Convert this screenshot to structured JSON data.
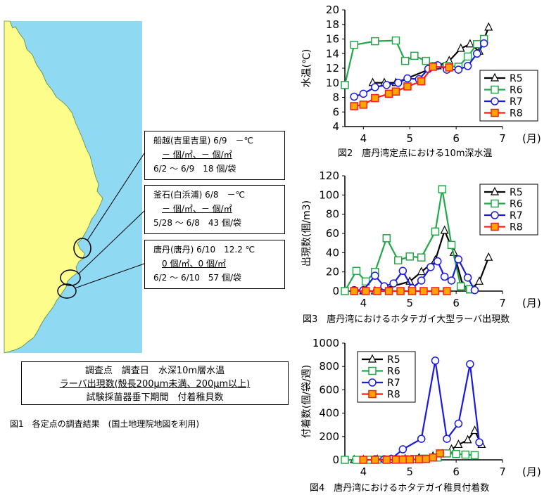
{
  "fig1": {
    "caption": "図1　各定点の調査結果　(国土地理院地図を利用)",
    "stations": [
      {
        "line1": "船越(吉里吉里) 6/9　－℃",
        "line2": "－ 個/㎡、－ 個/㎡",
        "line3": "6/2 ～ 6/9　18 個/袋"
      },
      {
        "line1": "釜石(白浜浦) 6/8　－℃",
        "line2": "－ 個/㎡、－ 個/㎡",
        "line3": "5/28 ～ 6/8　43 個/袋"
      },
      {
        "line1": "唐丹(唐丹) 6/10　12.2 ℃",
        "line2": "0 個/㎡、0 個/㎡",
        "line3": "6/2 ～ 6/10　57 個/袋"
      }
    ],
    "legend": {
      "line1": "調査点　調査日　水深10m層水温",
      "line2": "ラーバ出現数(殻長200μm未満、200μm以上)",
      "line3": "試験採苗器垂下期間　付着稚貝数"
    },
    "colors": {
      "sea": "#8fd9f2",
      "land": "#fdfd8c"
    }
  },
  "chart_data": [
    {
      "type": "line",
      "caption": "図2　唐丹湾定点における10m深水温",
      "ylabel": "水温(℃)",
      "xunit": "(月)",
      "xlim": [
        3.6,
        7.0
      ],
      "ylim": [
        4,
        20
      ],
      "xticks": [
        4,
        5,
        6,
        7
      ],
      "yticks": [
        4,
        6,
        8,
        10,
        12,
        14,
        16,
        18,
        20
      ],
      "series": [
        {
          "name": "R5",
          "color": "#000000",
          "marker": "triangle",
          "fill": "#ffffff",
          "points": [
            [
              4.2,
              10.0
            ],
            [
              4.45,
              10.0
            ],
            [
              4.7,
              10.0
            ],
            [
              5.6,
              12.3
            ],
            [
              5.85,
              13.0
            ],
            [
              6.1,
              14.7
            ],
            [
              6.3,
              15.3
            ],
            [
              6.5,
              14.3
            ],
            [
              6.7,
              17.6
            ]
          ]
        },
        {
          "name": "R6",
          "color": "#22a84a",
          "marker": "square",
          "fill": "#ffffff",
          "points": [
            [
              3.6,
              9.7
            ],
            [
              3.8,
              15.2
            ],
            [
              4.25,
              15.7
            ],
            [
              4.7,
              15.8
            ],
            [
              4.9,
              13.0
            ],
            [
              5.1,
              13.7
            ],
            [
              5.35,
              13.0
            ],
            [
              5.55,
              12.3
            ],
            [
              5.8,
              12.3
            ],
            [
              6.05,
              12.2
            ],
            [
              6.25,
              13.6
            ],
            [
              6.45,
              15.3
            ],
            [
              6.6,
              16.0
            ]
          ]
        },
        {
          "name": "R7",
          "color": "#1a1add",
          "marker": "circle",
          "fill": "#ffffff",
          "points": [
            [
              3.8,
              8.1
            ],
            [
              4.0,
              8.5
            ],
            [
              4.25,
              9.4
            ],
            [
              4.5,
              9.7
            ],
            [
              4.75,
              10.0
            ],
            [
              4.95,
              10.6
            ],
            [
              5.2,
              10.5
            ],
            [
              5.4,
              11.9
            ],
            [
              5.6,
              12.4
            ],
            [
              5.8,
              11.8
            ],
            [
              6.05,
              11.8
            ],
            [
              6.25,
              12.3
            ],
            [
              6.45,
              14.0
            ],
            [
              6.6,
              15.4
            ]
          ]
        },
        {
          "name": "R8",
          "color": "#ff1a1a",
          "marker": "square",
          "fill": "#ffa500",
          "points": [
            [
              3.8,
              6.8
            ],
            [
              4.0,
              7.0
            ],
            [
              4.25,
              7.9
            ],
            [
              4.55,
              8.5
            ],
            [
              4.7,
              8.8
            ],
            [
              4.95,
              9.5
            ],
            [
              5.25,
              10.2
            ],
            [
              5.5,
              12.2
            ],
            [
              5.85,
              12.1
            ]
          ]
        }
      ]
    },
    {
      "type": "line",
      "caption": "図3　唐丹湾におけるホタテガイ大型ラーバ出現数",
      "ylabel": "出現数(個/m3)",
      "xunit": "(月)",
      "xlim": [
        3.6,
        7.0
      ],
      "ylim": [
        0,
        120
      ],
      "xticks": [
        4,
        5,
        6,
        7
      ],
      "yticks": [
        0,
        20,
        40,
        60,
        80,
        100,
        120
      ],
      "series": [
        {
          "name": "R5",
          "color": "#000000",
          "marker": "triangle",
          "fill": "#ffffff",
          "points": [
            [
              4.0,
              0
            ],
            [
              4.25,
              0
            ],
            [
              5.0,
              10
            ],
            [
              5.25,
              20
            ],
            [
              5.55,
              32
            ],
            [
              5.75,
              63
            ],
            [
              5.95,
              40
            ],
            [
              6.15,
              5
            ],
            [
              6.3,
              1
            ],
            [
              6.5,
              10
            ],
            [
              6.7,
              35
            ]
          ]
        },
        {
          "name": "R6",
          "color": "#22a84a",
          "marker": "square",
          "fill": "#ffffff",
          "points": [
            [
              3.6,
              0
            ],
            [
              3.85,
              21
            ],
            [
              4.05,
              10
            ],
            [
              4.25,
              20
            ],
            [
              4.5,
              55
            ],
            [
              4.75,
              32
            ],
            [
              5.0,
              36
            ],
            [
              5.25,
              35
            ],
            [
              5.55,
              62
            ],
            [
              5.7,
              106
            ],
            [
              5.9,
              48
            ],
            [
              6.1,
              5
            ],
            [
              6.3,
              2
            ]
          ]
        },
        {
          "name": "R7",
          "color": "#1a1add",
          "marker": "circle",
          "fill": "#ffffff",
          "points": [
            [
              3.8,
              1
            ],
            [
              4.0,
              1
            ],
            [
              4.25,
              16
            ],
            [
              4.45,
              5
            ],
            [
              4.65,
              8
            ],
            [
              4.85,
              21
            ],
            [
              5.05,
              3
            ],
            [
              5.25,
              11
            ],
            [
              5.45,
              25
            ],
            [
              5.6,
              31
            ],
            [
              5.75,
              15
            ],
            [
              5.9,
              11
            ],
            [
              6.05,
              33
            ],
            [
              6.25,
              14
            ],
            [
              6.4,
              1
            ]
          ]
        },
        {
          "name": "R8",
          "color": "#ff1a1a",
          "marker": "square",
          "fill": "#ffa500",
          "points": [
            [
              3.8,
              0
            ],
            [
              4.05,
              0
            ],
            [
              4.3,
              0
            ],
            [
              4.55,
              0
            ],
            [
              4.8,
              0
            ],
            [
              5.05,
              0
            ],
            [
              5.3,
              0
            ],
            [
              5.55,
              0
            ],
            [
              5.8,
              0
            ]
          ]
        }
      ]
    },
    {
      "type": "line",
      "caption": "図4　唐丹湾におけるホタテガイ稚貝付着数",
      "ylabel": "付着数(個/袋/週)",
      "xunit": "(月)",
      "xlim": [
        3.6,
        7.0
      ],
      "ylim": [
        0,
        1000
      ],
      "xticks": [
        4,
        5,
        6,
        7
      ],
      "yticks": [
        0,
        200,
        400,
        600,
        800,
        1000
      ],
      "series": [
        {
          "name": "R5",
          "color": "#000000",
          "marker": "triangle",
          "fill": "#ffffff",
          "points": [
            [
              3.8,
              0
            ],
            [
              4.0,
              0
            ],
            [
              4.3,
              3
            ],
            [
              4.6,
              5
            ],
            [
              4.9,
              8
            ],
            [
              5.2,
              15
            ],
            [
              5.5,
              30
            ],
            [
              5.7,
              50
            ],
            [
              5.9,
              90
            ],
            [
              6.05,
              130
            ],
            [
              6.25,
              170
            ],
            [
              6.4,
              250
            ],
            [
              6.55,
              130
            ]
          ]
        },
        {
          "name": "R6",
          "color": "#22a84a",
          "marker": "square",
          "fill": "#ffffff",
          "points": [
            [
              3.6,
              0
            ],
            [
              3.85,
              0
            ],
            [
              4.1,
              1
            ],
            [
              4.3,
              2
            ],
            [
              4.5,
              3
            ],
            [
              4.7,
              5
            ],
            [
              4.9,
              5
            ],
            [
              5.1,
              8
            ],
            [
              5.3,
              10
            ],
            [
              5.6,
              20
            ],
            [
              5.8,
              55
            ],
            [
              6.0,
              50
            ],
            [
              6.2,
              45
            ],
            [
              6.4,
              40
            ]
          ]
        },
        {
          "name": "R7",
          "color": "#1a1add",
          "marker": "circle",
          "fill": "#ffffff",
          "points": [
            [
              4.25,
              5
            ],
            [
              4.45,
              5
            ],
            [
              4.6,
              8
            ],
            [
              4.85,
              90
            ],
            [
              5.25,
              180
            ],
            [
              5.55,
              850
            ],
            [
              5.8,
              180
            ],
            [
              6.05,
              310
            ],
            [
              6.3,
              820
            ],
            [
              6.5,
              150
            ]
          ]
        },
        {
          "name": "R8",
          "color": "#ff1a1a",
          "marker": "square",
          "fill": "#ffa500",
          "points": [
            [
              4.0,
              0
            ],
            [
              4.25,
              0
            ],
            [
              4.5,
              0
            ],
            [
              4.7,
              1
            ],
            [
              4.85,
              2
            ],
            [
              5.0,
              3
            ],
            [
              5.2,
              5
            ],
            [
              5.35,
              8
            ],
            [
              5.5,
              20
            ],
            [
              5.65,
              55
            ]
          ]
        }
      ]
    }
  ]
}
